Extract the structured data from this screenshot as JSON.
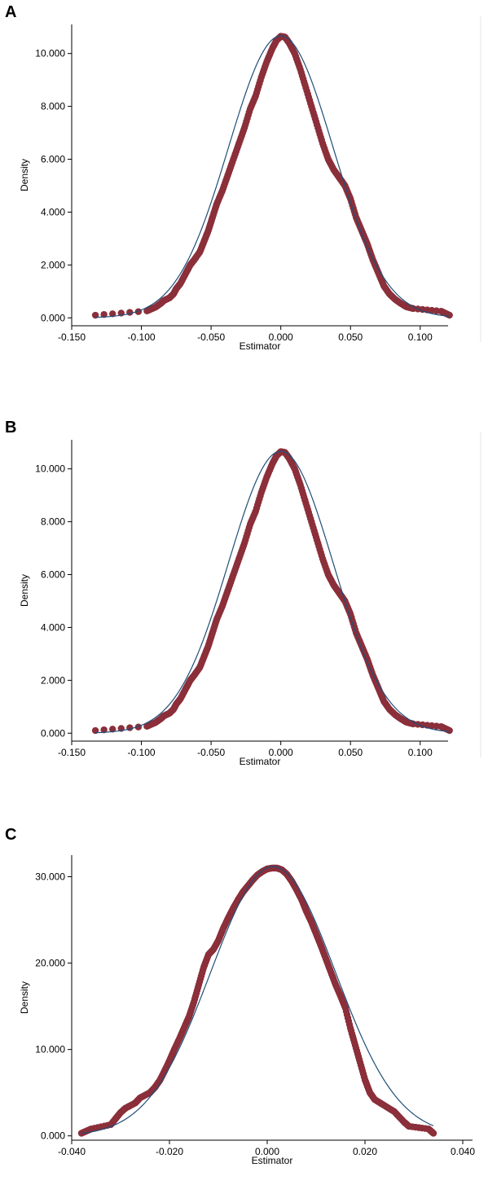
{
  "colors": {
    "points": "#8b2f3a",
    "curve": "#1f4e79",
    "axis": "#000000"
  },
  "chart_data": [
    {
      "panel_label": "A",
      "type": "scatter",
      "xlabel": "Estimator",
      "ylabel": "Density",
      "xlim": [
        -0.15,
        0.12
      ],
      "ylim": [
        -0.3,
        11.1
      ],
      "xticks": [
        -0.15,
        -0.1,
        -0.05,
        0.0,
        0.05,
        0.1
      ],
      "xtick_labels": [
        "-0.150",
        "-0.100",
        "-0.050",
        "0.000",
        "0.050",
        "0.100"
      ],
      "yticks": [
        0,
        2,
        4,
        6,
        8,
        10
      ],
      "ytick_labels": [
        "0.000",
        "2.000",
        "4.000",
        "6.000",
        "8.000",
        "10.000"
      ],
      "grid": false,
      "normal_curve": {
        "mean": 0.0,
        "sd": 0.0374
      },
      "series": [
        {
          "type": "scatter",
          "points": [
            [
              -0.133,
              0.1
            ],
            [
              -0.096,
              0.26
            ],
            [
              -0.09,
              0.4
            ],
            [
              -0.086,
              0.55
            ],
            [
              -0.084,
              0.65
            ],
            [
              -0.08,
              0.75
            ],
            [
              -0.077,
              0.9
            ],
            [
              -0.075,
              1.1
            ],
            [
              -0.072,
              1.3
            ],
            [
              -0.068,
              1.7
            ],
            [
              -0.065,
              2.0
            ],
            [
              -0.062,
              2.2
            ],
            [
              -0.058,
              2.5
            ],
            [
              -0.055,
              2.9
            ],
            [
              -0.052,
              3.3
            ],
            [
              -0.049,
              3.8
            ],
            [
              -0.046,
              4.3
            ],
            [
              -0.042,
              4.8
            ],
            [
              -0.038,
              5.4
            ],
            [
              -0.034,
              6.0
            ],
            [
              -0.03,
              6.6
            ],
            [
              -0.026,
              7.2
            ],
            [
              -0.022,
              7.9
            ],
            [
              -0.018,
              8.4
            ],
            [
              -0.014,
              9.1
            ],
            [
              -0.01,
              9.7
            ],
            [
              -0.006,
              10.2
            ],
            [
              -0.003,
              10.5
            ],
            [
              0.0,
              10.65
            ],
            [
              0.003,
              10.62
            ],
            [
              0.006,
              10.4
            ],
            [
              0.01,
              10.0
            ],
            [
              0.014,
              9.4
            ],
            [
              0.018,
              8.7
            ],
            [
              0.022,
              8.0
            ],
            [
              0.026,
              7.3
            ],
            [
              0.03,
              6.6
            ],
            [
              0.034,
              6.0
            ],
            [
              0.038,
              5.6
            ],
            [
              0.042,
              5.3
            ],
            [
              0.046,
              5.0
            ],
            [
              0.05,
              4.5
            ],
            [
              0.054,
              3.8
            ],
            [
              0.058,
              3.3
            ],
            [
              0.062,
              2.8
            ],
            [
              0.066,
              2.2
            ],
            [
              0.07,
              1.7
            ],
            [
              0.074,
              1.2
            ],
            [
              0.078,
              0.9
            ],
            [
              0.082,
              0.7
            ],
            [
              0.086,
              0.55
            ],
            [
              0.09,
              0.42
            ],
            [
              0.095,
              0.35
            ],
            [
              0.115,
              0.25
            ],
            [
              0.121,
              0.1
            ]
          ]
        }
      ]
    },
    {
      "panel_label": "B",
      "type": "scatter",
      "xlabel": "Estimator",
      "ylabel": "Density",
      "xlim": [
        -0.15,
        0.12
      ],
      "ylim": [
        -0.3,
        11.1
      ],
      "xticks": [
        -0.15,
        -0.1,
        -0.05,
        0.0,
        0.05,
        0.1
      ],
      "xtick_labels": [
        "-0.150",
        "-0.100",
        "-0.050",
        "0.000",
        "0.050",
        "0.100"
      ],
      "yticks": [
        0,
        2,
        4,
        6,
        8,
        10
      ],
      "ytick_labels": [
        "0.000",
        "2.000",
        "4.000",
        "6.000",
        "8.000",
        "10.000"
      ],
      "grid": false,
      "normal_curve": {
        "mean": 0.0,
        "sd": 0.0374
      },
      "series": [
        {
          "type": "scatter",
          "points": [
            [
              -0.133,
              0.1
            ],
            [
              -0.096,
              0.26
            ],
            [
              -0.09,
              0.4
            ],
            [
              -0.086,
              0.55
            ],
            [
              -0.084,
              0.65
            ],
            [
              -0.08,
              0.75
            ],
            [
              -0.077,
              0.9
            ],
            [
              -0.075,
              1.1
            ],
            [
              -0.072,
              1.3
            ],
            [
              -0.068,
              1.7
            ],
            [
              -0.065,
              2.0
            ],
            [
              -0.062,
              2.2
            ],
            [
              -0.058,
              2.5
            ],
            [
              -0.055,
              2.9
            ],
            [
              -0.052,
              3.3
            ],
            [
              -0.049,
              3.8
            ],
            [
              -0.046,
              4.3
            ],
            [
              -0.042,
              4.8
            ],
            [
              -0.038,
              5.4
            ],
            [
              -0.034,
              6.0
            ],
            [
              -0.03,
              6.6
            ],
            [
              -0.026,
              7.2
            ],
            [
              -0.022,
              7.9
            ],
            [
              -0.018,
              8.4
            ],
            [
              -0.014,
              9.1
            ],
            [
              -0.01,
              9.7
            ],
            [
              -0.006,
              10.2
            ],
            [
              -0.003,
              10.5
            ],
            [
              0.0,
              10.65
            ],
            [
              0.003,
              10.62
            ],
            [
              0.006,
              10.4
            ],
            [
              0.01,
              10.0
            ],
            [
              0.014,
              9.4
            ],
            [
              0.018,
              8.7
            ],
            [
              0.022,
              8.0
            ],
            [
              0.026,
              7.3
            ],
            [
              0.03,
              6.6
            ],
            [
              0.034,
              6.0
            ],
            [
              0.038,
              5.6
            ],
            [
              0.042,
              5.3
            ],
            [
              0.046,
              5.0
            ],
            [
              0.05,
              4.5
            ],
            [
              0.054,
              3.8
            ],
            [
              0.058,
              3.3
            ],
            [
              0.062,
              2.8
            ],
            [
              0.066,
              2.2
            ],
            [
              0.07,
              1.7
            ],
            [
              0.074,
              1.2
            ],
            [
              0.078,
              0.9
            ],
            [
              0.082,
              0.7
            ],
            [
              0.086,
              0.55
            ],
            [
              0.09,
              0.42
            ],
            [
              0.095,
              0.35
            ],
            [
              0.115,
              0.25
            ],
            [
              0.121,
              0.1
            ]
          ]
        }
      ]
    },
    {
      "panel_label": "C",
      "type": "scatter",
      "xlabel": "Estimator",
      "ylabel": "Density",
      "xlim": [
        -0.04,
        0.042
      ],
      "ylim": [
        -0.5,
        32.5
      ],
      "xticks": [
        -0.04,
        -0.02,
        0.0,
        0.02,
        0.04
      ],
      "xtick_labels": [
        "-0.040",
        "-0.020",
        "0.000",
        "0.020",
        "0.040"
      ],
      "yticks": [
        0,
        10,
        20,
        30
      ],
      "ytick_labels": [
        "0.000",
        "10.000",
        "20.000",
        "30.000"
      ],
      "grid": false,
      "normal_curve": {
        "mean": 0.0012,
        "sd": 0.0128
      },
      "series": [
        {
          "type": "scatter",
          "points": [
            [
              -0.038,
              0.3
            ],
            [
              -0.036,
              0.8
            ],
            [
              -0.032,
              1.3
            ],
            [
              -0.031,
              2.0
            ],
            [
              -0.03,
              2.7
            ],
            [
              -0.029,
              3.2
            ],
            [
              -0.027,
              3.8
            ],
            [
              -0.026,
              4.4
            ],
            [
              -0.024,
              5.0
            ],
            [
              -0.023,
              5.6
            ],
            [
              -0.022,
              6.4
            ],
            [
              -0.021,
              7.5
            ],
            [
              -0.02,
              8.7
            ],
            [
              -0.019,
              10.0
            ],
            [
              -0.018,
              11.2
            ],
            [
              -0.017,
              12.5
            ],
            [
              -0.016,
              13.8
            ],
            [
              -0.015,
              15.5
            ],
            [
              -0.014,
              17.5
            ],
            [
              -0.013,
              19.5
            ],
            [
              -0.012,
              21.0
            ],
            [
              -0.011,
              21.6
            ],
            [
              -0.01,
              22.6
            ],
            [
              -0.009,
              24.0
            ],
            [
              -0.008,
              25.2
            ],
            [
              -0.007,
              26.3
            ],
            [
              -0.006,
              27.3
            ],
            [
              -0.005,
              28.2
            ],
            [
              -0.004,
              28.9
            ],
            [
              -0.003,
              29.6
            ],
            [
              -0.002,
              30.2
            ],
            [
              -0.001,
              30.6
            ],
            [
              0.0,
              30.9
            ],
            [
              0.001,
              31.0
            ],
            [
              0.002,
              31.0
            ],
            [
              0.003,
              30.8
            ],
            [
              0.004,
              30.3
            ],
            [
              0.005,
              29.5
            ],
            [
              0.006,
              28.5
            ],
            [
              0.007,
              27.4
            ],
            [
              0.008,
              26.0
            ],
            [
              0.009,
              24.8
            ],
            [
              0.01,
              23.4
            ],
            [
              0.011,
              22.0
            ],
            [
              0.012,
              20.5
            ],
            [
              0.013,
              19.0
            ],
            [
              0.014,
              17.5
            ],
            [
              0.015,
              16.2
            ],
            [
              0.016,
              14.8
            ],
            [
              0.017,
              12.5
            ],
            [
              0.018,
              10.5
            ],
            [
              0.019,
              8.5
            ],
            [
              0.02,
              6.5
            ],
            [
              0.021,
              5.0
            ],
            [
              0.022,
              4.2
            ],
            [
              0.024,
              3.5
            ],
            [
              0.026,
              2.8
            ],
            [
              0.028,
              1.6
            ],
            [
              0.029,
              1.1
            ],
            [
              0.033,
              0.8
            ],
            [
              0.034,
              0.3
            ]
          ]
        }
      ]
    }
  ]
}
